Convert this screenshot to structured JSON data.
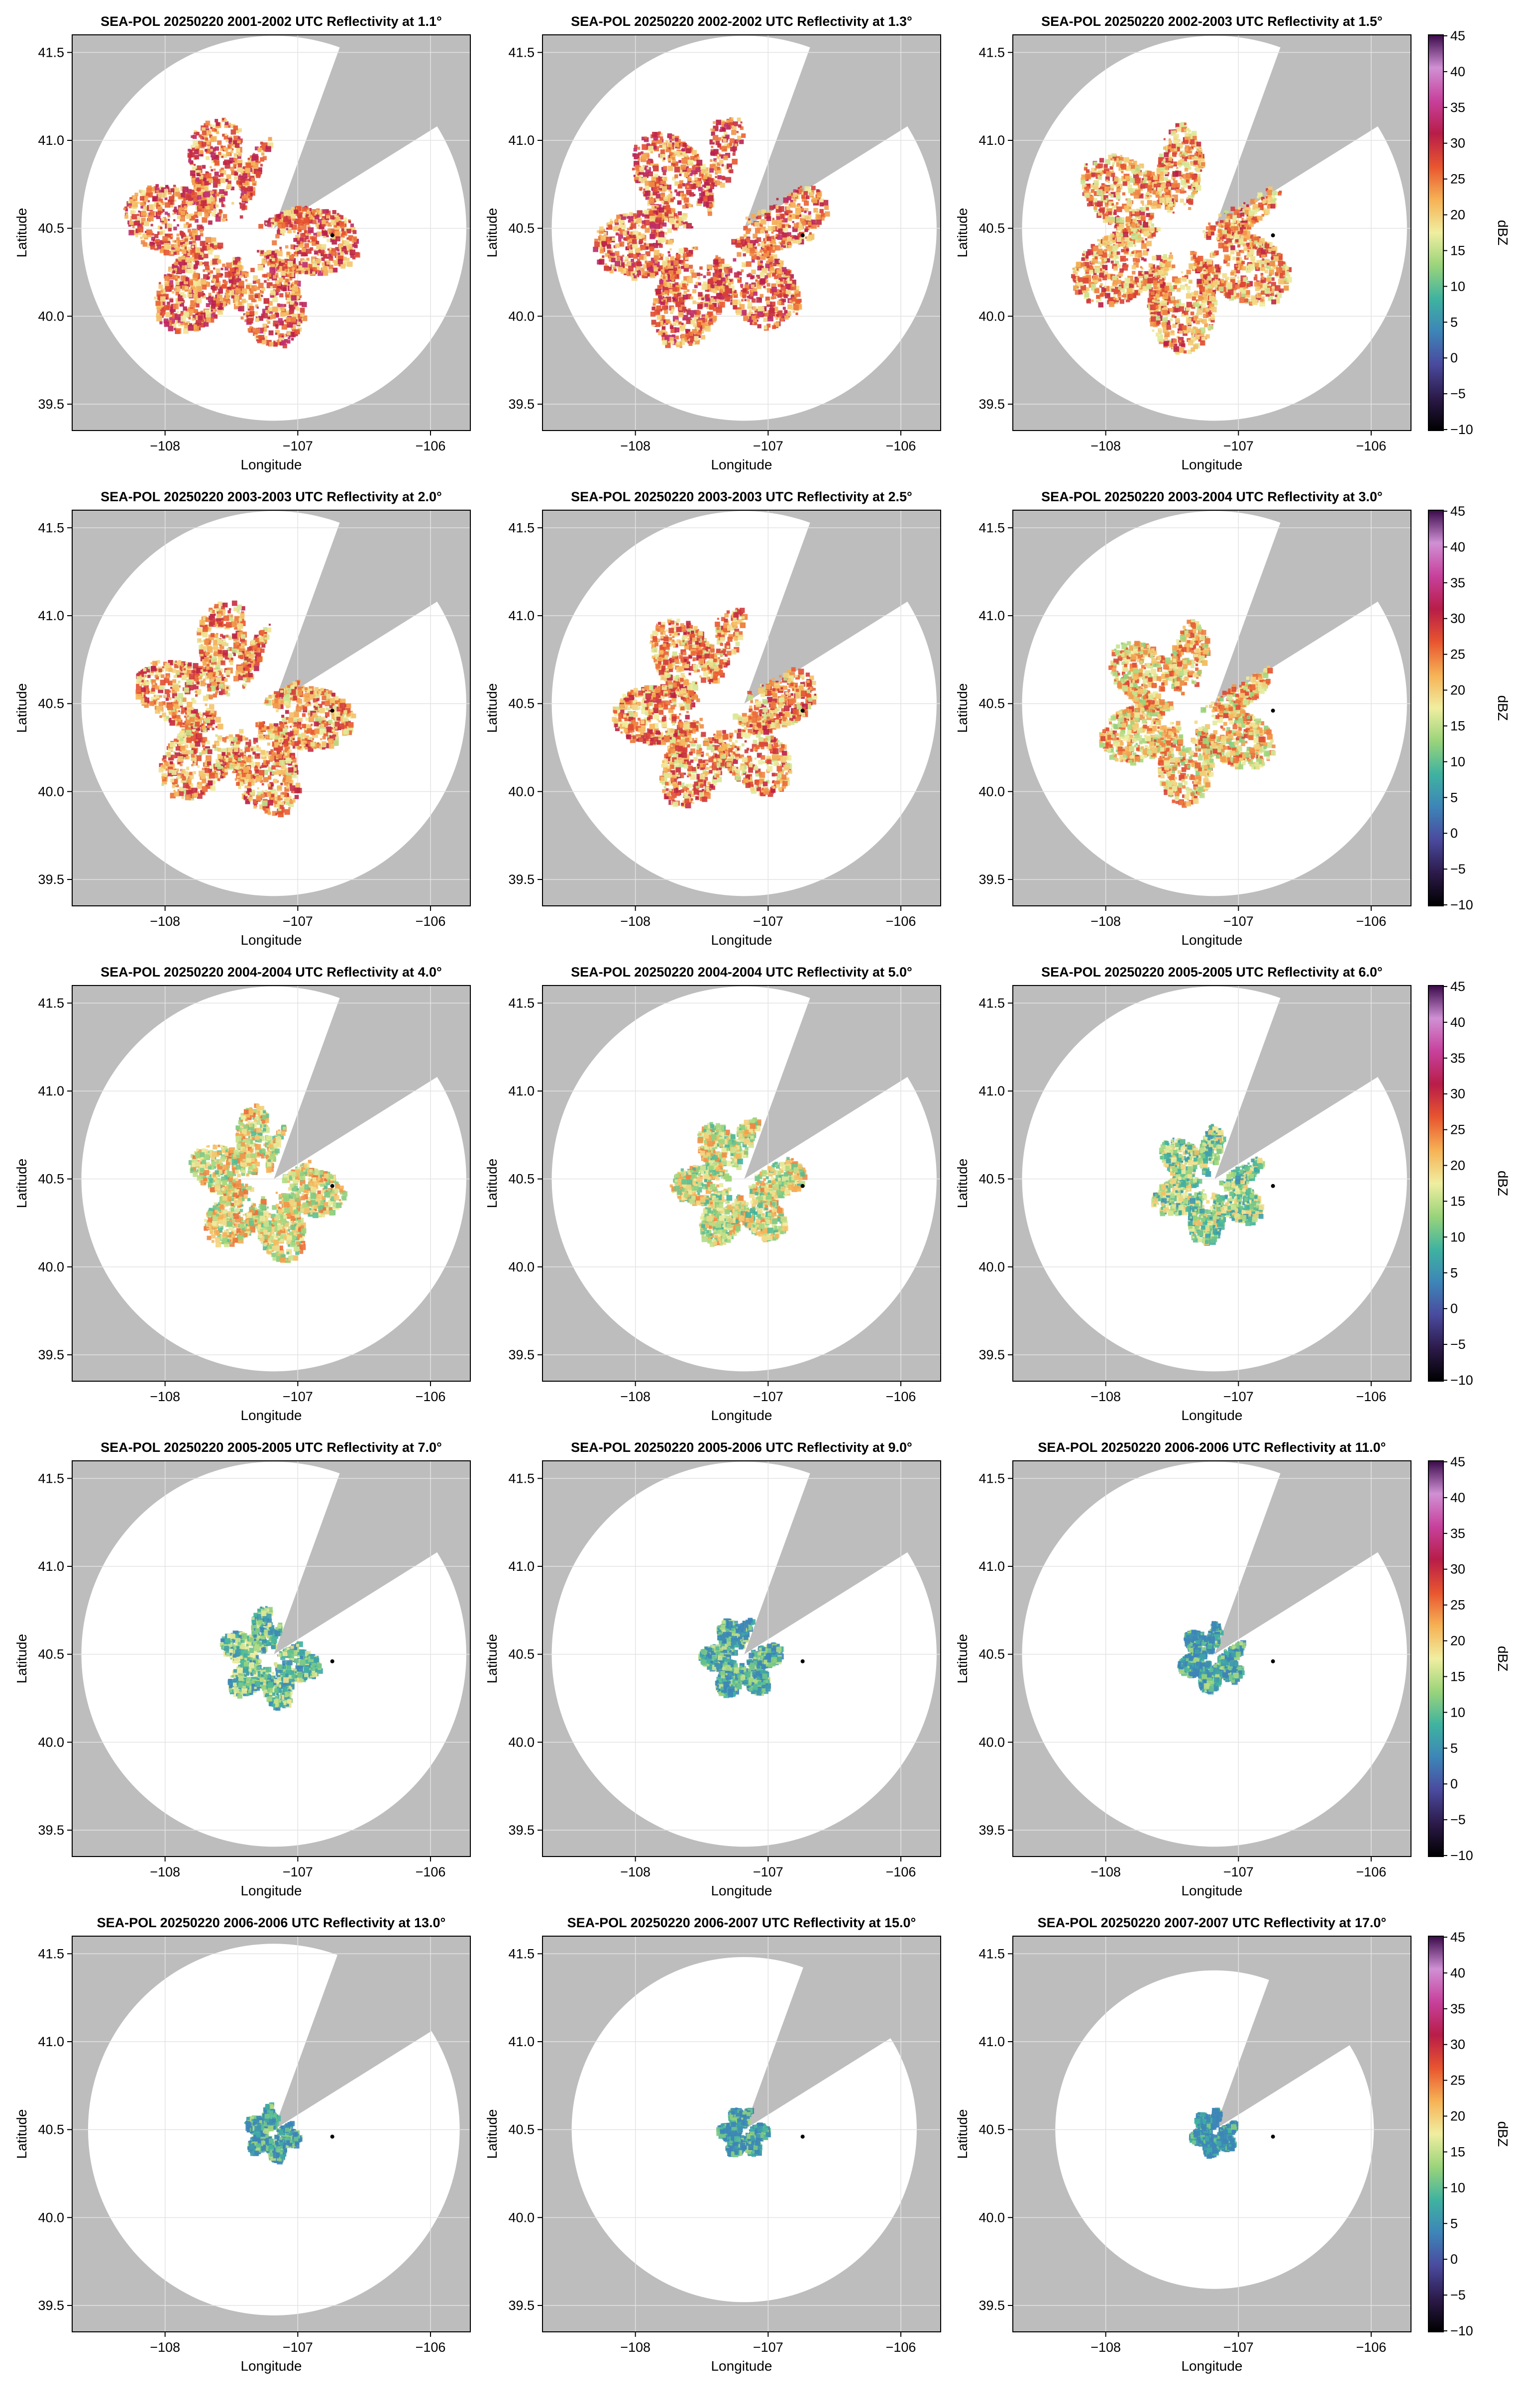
{
  "figure": {
    "colors": {
      "background": "#bdbdbd",
      "coverage": "#ffffff",
      "grid": "#e3e3e3",
      "frame": "#000000",
      "radar_marker": "#000000"
    },
    "colorbar": {
      "label": "dBZ",
      "ticks": [
        "45",
        "40",
        "35",
        "30",
        "25",
        "20",
        "15",
        "10",
        "5",
        "0",
        "−5",
        "−10"
      ],
      "stops": [
        "#000000",
        "#2c1a4a",
        "#4a4a9e",
        "#3d85b8",
        "#3fb3a0",
        "#9ad47a",
        "#f0eea0",
        "#f6b255",
        "#e8552f",
        "#b81d48",
        "#c7409b",
        "#d090d4",
        "#3a0a4a"
      ]
    }
  },
  "chart_data": [
    {
      "type": "heatmap",
      "title": "SEA-POL 20250220 2001-2002 UTC Reflectivity at 1.1°",
      "xlabel": "Longitude",
      "ylabel": "Latitude",
      "xlim": [
        -108.7,
        -105.7
      ],
      "ylim": [
        39.35,
        41.6
      ],
      "xticks": [
        "−108",
        "−107",
        "−106"
      ],
      "yticks": [
        "39.5",
        "40.0",
        "40.5",
        "41.0",
        "41.5"
      ],
      "colorbar": false,
      "coverage_radius_deg": 1.45,
      "echo_extent_deg": 0.75,
      "echo_intensity": 0.65
    },
    {
      "type": "heatmap",
      "title": "SEA-POL 20250220 2002-2002 UTC Reflectivity at 1.3°",
      "xlabel": "Longitude",
      "ylabel": "Latitude",
      "xlim": [
        -108.7,
        -105.7
      ],
      "ylim": [
        39.35,
        41.6
      ],
      "xticks": [
        "−108",
        "−107",
        "−106"
      ],
      "yticks": [
        "39.5",
        "40.0",
        "40.5",
        "41.0",
        "41.5"
      ],
      "colorbar": false,
      "coverage_radius_deg": 1.45,
      "echo_extent_deg": 0.75,
      "echo_intensity": 0.65
    },
    {
      "type": "heatmap",
      "title": "SEA-POL 20250220 2002-2003 UTC Reflectivity at 1.5°",
      "xlabel": "Longitude",
      "ylabel": "Latitude",
      "xlim": [
        -108.7,
        -105.7
      ],
      "ylim": [
        39.35,
        41.6
      ],
      "xticks": [
        "−108",
        "−107",
        "−106"
      ],
      "yticks": [
        "39.5",
        "40.0",
        "40.5",
        "41.0",
        "41.5"
      ],
      "colorbar": true,
      "coverage_radius_deg": 1.45,
      "echo_extent_deg": 0.75,
      "echo_intensity": 0.6
    },
    {
      "type": "heatmap",
      "title": "SEA-POL 20250220 2003-2003 UTC Reflectivity at 2.0°",
      "xlabel": "Longitude",
      "ylabel": "Latitude",
      "xlim": [
        -108.7,
        -105.7
      ],
      "ylim": [
        39.35,
        41.6
      ],
      "xticks": [
        "−108",
        "−107",
        "−106"
      ],
      "yticks": [
        "39.5",
        "40.0",
        "40.5",
        "41.0",
        "41.5"
      ],
      "colorbar": false,
      "coverage_radius_deg": 1.45,
      "echo_extent_deg": 0.7,
      "echo_intensity": 0.6
    },
    {
      "type": "heatmap",
      "title": "SEA-POL 20250220 2003-2003 UTC Reflectivity at 2.5°",
      "xlabel": "Longitude",
      "ylabel": "Latitude",
      "xlim": [
        -108.7,
        -105.7
      ],
      "ylim": [
        39.35,
        41.6
      ],
      "xticks": [
        "−108",
        "−107",
        "−106"
      ],
      "yticks": [
        "39.5",
        "40.0",
        "40.5",
        "41.0",
        "41.5"
      ],
      "colorbar": false,
      "coverage_radius_deg": 1.45,
      "echo_extent_deg": 0.65,
      "echo_intensity": 0.6
    },
    {
      "type": "heatmap",
      "title": "SEA-POL 20250220 2003-2004 UTC Reflectivity at 3.0°",
      "xlabel": "Longitude",
      "ylabel": "Latitude",
      "xlim": [
        -108.7,
        -105.7
      ],
      "ylim": [
        39.35,
        41.6
      ],
      "xticks": [
        "−108",
        "−107",
        "−106"
      ],
      "yticks": [
        "39.5",
        "40.0",
        "40.5",
        "41.0",
        "41.5"
      ],
      "colorbar": true,
      "coverage_radius_deg": 1.45,
      "echo_extent_deg": 0.6,
      "echo_intensity": 0.55
    },
    {
      "type": "heatmap",
      "title": "SEA-POL 20250220 2004-2004 UTC Reflectivity at 4.0°",
      "xlabel": "Longitude",
      "ylabel": "Latitude",
      "xlim": [
        -108.7,
        -105.7
      ],
      "ylim": [
        39.35,
        41.6
      ],
      "xticks": [
        "−108",
        "−107",
        "−106"
      ],
      "yticks": [
        "39.5",
        "40.0",
        "40.5",
        "41.0",
        "41.5"
      ],
      "colorbar": false,
      "coverage_radius_deg": 1.45,
      "echo_extent_deg": 0.5,
      "echo_intensity": 0.5
    },
    {
      "type": "heatmap",
      "title": "SEA-POL 20250220 2004-2004 UTC Reflectivity at 5.0°",
      "xlabel": "Longitude",
      "ylabel": "Latitude",
      "xlim": [
        -108.7,
        -105.7
      ],
      "ylim": [
        39.35,
        41.6
      ],
      "xticks": [
        "−108",
        "−107",
        "−106"
      ],
      "yticks": [
        "39.5",
        "40.0",
        "40.5",
        "41.0",
        "41.5"
      ],
      "colorbar": false,
      "coverage_radius_deg": 1.45,
      "echo_extent_deg": 0.42,
      "echo_intensity": 0.48
    },
    {
      "type": "heatmap",
      "title": "SEA-POL 20250220 2005-2005 UTC Reflectivity at 6.0°",
      "xlabel": "Longitude",
      "ylabel": "Latitude",
      "xlim": [
        -108.7,
        -105.7
      ],
      "ylim": [
        39.35,
        41.6
      ],
      "xticks": [
        "−108",
        "−107",
        "−106"
      ],
      "yticks": [
        "39.5",
        "40.0",
        "40.5",
        "41.0",
        "41.5"
      ],
      "colorbar": true,
      "coverage_radius_deg": 1.45,
      "echo_extent_deg": 0.38,
      "echo_intensity": 0.42
    },
    {
      "type": "heatmap",
      "title": "SEA-POL 20250220 2005-2005 UTC Reflectivity at 7.0°",
      "xlabel": "Longitude",
      "ylabel": "Latitude",
      "xlim": [
        -108.7,
        -105.7
      ],
      "ylim": [
        39.35,
        41.6
      ],
      "xticks": [
        "−108",
        "−107",
        "−106"
      ],
      "yticks": [
        "39.5",
        "40.0",
        "40.5",
        "41.0",
        "41.5"
      ],
      "colorbar": false,
      "coverage_radius_deg": 1.45,
      "echo_extent_deg": 0.32,
      "echo_intensity": 0.38
    },
    {
      "type": "heatmap",
      "title": "SEA-POL 20250220 2005-2006 UTC Reflectivity at 9.0°",
      "xlabel": "Longitude",
      "ylabel": "Latitude",
      "xlim": [
        -108.7,
        -105.7
      ],
      "ylim": [
        39.35,
        41.6
      ],
      "xticks": [
        "−108",
        "−107",
        "−106"
      ],
      "yticks": [
        "39.5",
        "40.0",
        "40.5",
        "41.0",
        "41.5"
      ],
      "colorbar": false,
      "coverage_radius_deg": 1.45,
      "echo_extent_deg": 0.26,
      "echo_intensity": 0.32
    },
    {
      "type": "heatmap",
      "title": "SEA-POL 20250220 2006-2006 UTC Reflectivity at 11.0°",
      "xlabel": "Longitude",
      "ylabel": "Latitude",
      "xlim": [
        -108.7,
        -105.7
      ],
      "ylim": [
        39.35,
        41.6
      ],
      "xticks": [
        "−108",
        "−107",
        "−106"
      ],
      "yticks": [
        "39.5",
        "40.0",
        "40.5",
        "41.0",
        "41.5"
      ],
      "colorbar": true,
      "coverage_radius_deg": 1.45,
      "echo_extent_deg": 0.22,
      "echo_intensity": 0.3
    },
    {
      "type": "heatmap",
      "title": "SEA-POL 20250220 2006-2006 UTC Reflectivity at 13.0°",
      "xlabel": "Longitude",
      "ylabel": "Latitude",
      "xlim": [
        -108.7,
        -105.7
      ],
      "ylim": [
        39.35,
        41.6
      ],
      "xticks": [
        "−108",
        "−107",
        "−106"
      ],
      "yticks": [
        "39.5",
        "40.0",
        "40.5",
        "41.0",
        "41.5"
      ],
      "colorbar": false,
      "coverage_radius_deg": 1.4,
      "echo_extent_deg": 0.18,
      "echo_intensity": 0.3
    },
    {
      "type": "heatmap",
      "title": "SEA-POL 20250220 2006-2007 UTC Reflectivity at 15.0°",
      "xlabel": "Longitude",
      "ylabel": "Latitude",
      "xlim": [
        -108.7,
        -105.7
      ],
      "ylim": [
        39.35,
        41.6
      ],
      "xticks": [
        "−108",
        "−107",
        "−106"
      ],
      "yticks": [
        "39.5",
        "40.0",
        "40.5",
        "41.0",
        "41.5"
      ],
      "colorbar": false,
      "coverage_radius_deg": 1.3,
      "echo_extent_deg": 0.16,
      "echo_intensity": 0.28
    },
    {
      "type": "heatmap",
      "title": "SEA-POL 20250220 2007-2007 UTC Reflectivity at 17.0°",
      "xlabel": "Longitude",
      "ylabel": "Latitude",
      "xlim": [
        -108.7,
        -105.7
      ],
      "ylim": [
        39.35,
        41.6
      ],
      "xticks": [
        "−108",
        "−107",
        "−106"
      ],
      "yticks": [
        "39.5",
        "40.0",
        "40.5",
        "41.0",
        "41.5"
      ],
      "colorbar": true,
      "coverage_radius_deg": 1.2,
      "echo_extent_deg": 0.15,
      "echo_intensity": 0.25
    }
  ]
}
